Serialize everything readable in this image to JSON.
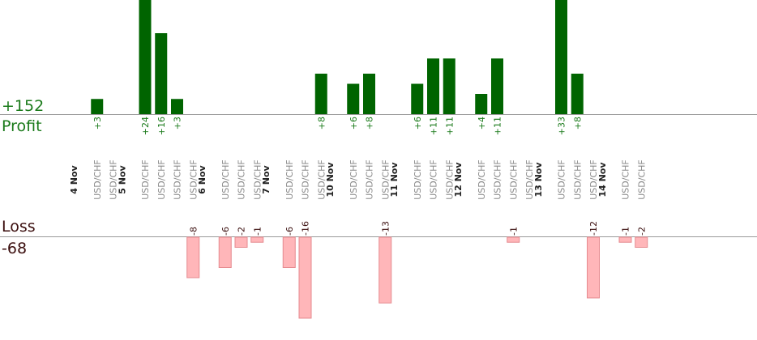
{
  "summary": {
    "profit_total": "+152",
    "profit_label": "Profit",
    "loss_label": "Loss",
    "loss_total": "-68"
  },
  "colors": {
    "profit_bar": "#006400",
    "loss_bar": "#ffb6b9",
    "loss_bar_edge": "#e58a8f",
    "profit_text": "#1a7a1a",
    "loss_text": "#3a0d0d",
    "day_text": "#222222",
    "symbol_text": "#8a8a8a",
    "axis": "#9a9a9a"
  },
  "chart_data": {
    "type": "bar",
    "days": [
      {
        "date": "4 Nov",
        "trades": [
          {
            "symbol": "USD/CHF",
            "label": "+3",
            "value": 3
          },
          {
            "symbol": "USD/CHF",
            "label": "",
            "value": 0
          }
        ]
      },
      {
        "date": "5 Nov",
        "trades": [
          {
            "symbol": "USD/CHF",
            "label": "+24",
            "value": 24
          },
          {
            "symbol": "USD/CHF",
            "label": "+16",
            "value": 16
          },
          {
            "symbol": "USD/CHF",
            "label": "+3",
            "value": 3
          },
          {
            "symbol": "USD/CHF",
            "label": "-8",
            "value": -8
          }
        ]
      },
      {
        "date": "6 Nov",
        "trades": [
          {
            "symbol": "USD/CHF",
            "label": "-6",
            "value": -6
          },
          {
            "symbol": "USD/CHF",
            "label": "-2",
            "value": -2
          },
          {
            "symbol": "USD/CHF",
            "label": "-1",
            "value": -1
          }
        ]
      },
      {
        "date": "7 Nov",
        "trades": [
          {
            "symbol": "USD/CHF",
            "label": "-6",
            "value": -6
          },
          {
            "symbol": "USD/CHF",
            "label": "-16",
            "value": -16
          },
          {
            "symbol": "USD/CHF",
            "label": "+8",
            "value": 8
          }
        ]
      },
      {
        "date": "10 Nov",
        "trades": [
          {
            "symbol": "USD/CHF",
            "label": "+6",
            "value": 6
          },
          {
            "symbol": "USD/CHF",
            "label": "+8",
            "value": 8
          },
          {
            "symbol": "USD/CHF",
            "label": "-13",
            "value": -13
          }
        ]
      },
      {
        "date": "11 Nov",
        "trades": [
          {
            "symbol": "USD/CHF",
            "label": "+6",
            "value": 6
          },
          {
            "symbol": "USD/CHF",
            "label": "+11",
            "value": 11
          },
          {
            "symbol": "USD/CHF",
            "label": "+11",
            "value": 11
          }
        ]
      },
      {
        "date": "12 Nov",
        "trades": [
          {
            "symbol": "USD/CHF",
            "label": "+4",
            "value": 4
          },
          {
            "symbol": "USD/CHF",
            "label": "+11",
            "value": 11
          },
          {
            "symbol": "USD/CHF",
            "label": "-1",
            "value": -1
          },
          {
            "symbol": "USD/CHF",
            "label": "",
            "value": 0
          }
        ]
      },
      {
        "date": "13 Nov",
        "trades": [
          {
            "symbol": "USD/CHF",
            "label": "+33",
            "value": 33
          },
          {
            "symbol": "USD/CHF",
            "label": "+8",
            "value": 8
          },
          {
            "symbol": "USD/CHF",
            "label": "-12",
            "value": -12
          }
        ]
      },
      {
        "date": "14 Nov",
        "trades": [
          {
            "symbol": "USD/CHF",
            "label": "-1",
            "value": -1
          },
          {
            "symbol": "USD/CHF",
            "label": "-2",
            "value": -2
          }
        ]
      }
    ]
  }
}
